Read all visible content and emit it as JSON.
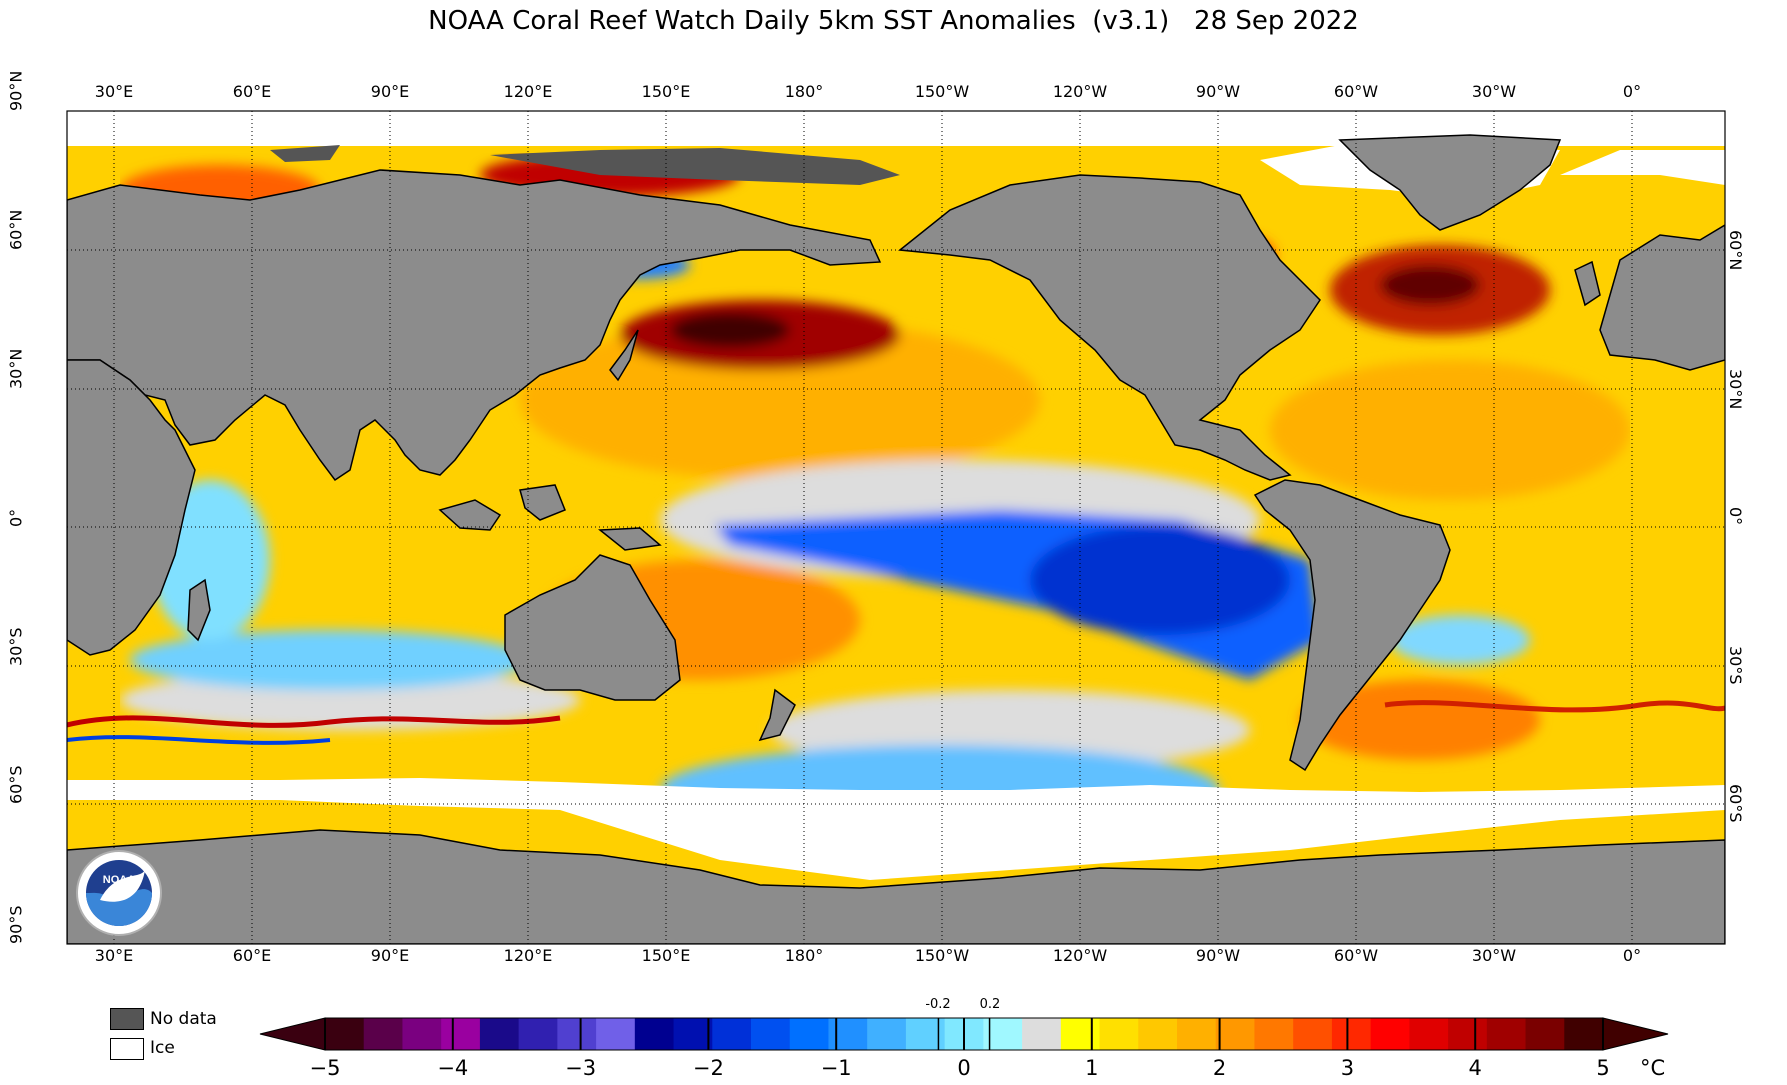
{
  "title": "NOAA Coral Reef Watch Daily 5km SST Anomalies  (v3.1)   28 Sep 2022",
  "lon_labels": [
    "30°E",
    "60°E",
    "90°E",
    "120°E",
    "150°E",
    "180°",
    "150°W",
    "120°W",
    "90°W",
    "60°W",
    "30°W",
    "0°"
  ],
  "lat_labels_left": [
    "90°N",
    "60°N",
    "30°N",
    "0°",
    "30°S",
    "60°S",
    "90°S"
  ],
  "lat_labels_right": [
    "60°N",
    "30°N",
    "0°",
    "30°S",
    "60°S"
  ],
  "legend": {
    "no_data": "No data",
    "ice": "Ice",
    "no_data_color": "#555555",
    "ice_color": "#ffffff",
    "land_color": "#8c8c8c"
  },
  "colorbar": {
    "min": -5,
    "max": 5,
    "unit": "°C",
    "tick_labels": [
      "−5",
      "−4",
      "−3",
      "−2",
      "−1",
      "0",
      "1",
      "2",
      "3",
      "4",
      "5"
    ],
    "small_labels": [
      "-0.2",
      "0.2"
    ],
    "colors": [
      "#3a0010",
      "#5a004a",
      "#7a0080",
      "#9a00a0",
      "#1a0a8a",
      "#3020b0",
      "#5040d0",
      "#7060e8",
      "#000090",
      "#0010b0",
      "#0030d8",
      "#0050f0",
      "#0070ff",
      "#2090ff",
      "#40b0ff",
      "#60d0ff",
      "#80e8ff",
      "#a0f8ff",
      "#dddddd",
      "#ffff00",
      "#ffe000",
      "#ffc800",
      "#ffb000",
      "#ff9800",
      "#ff7800",
      "#ff5000",
      "#ff2800",
      "#ff0000",
      "#e00000",
      "#c00000",
      "#a00000",
      "#7a0000",
      "#400000"
    ]
  }
}
